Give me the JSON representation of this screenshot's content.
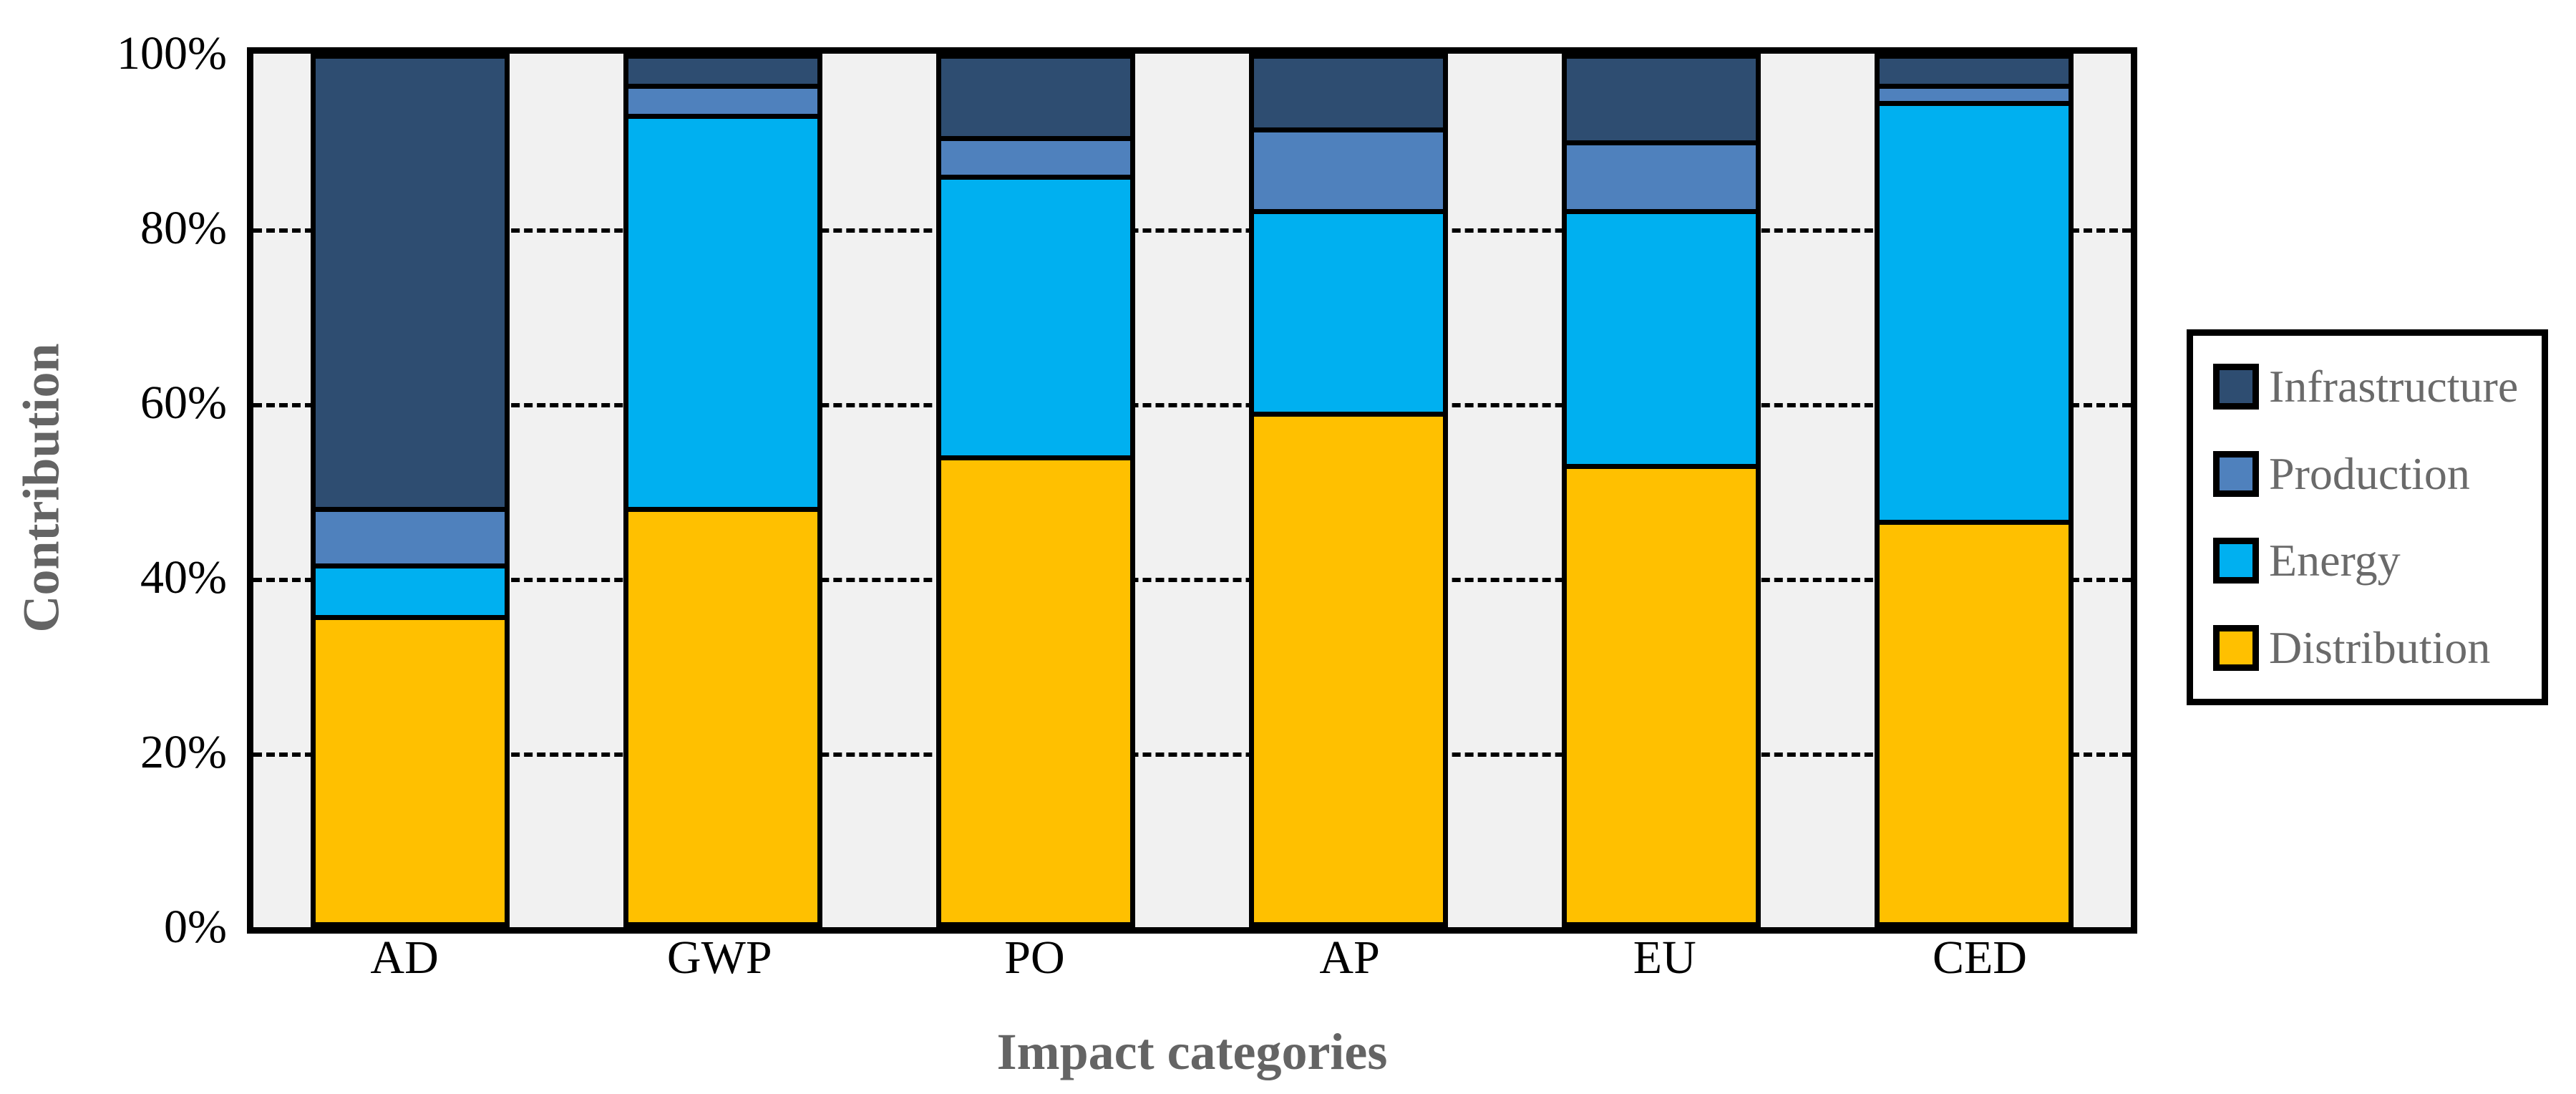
{
  "figure": {
    "y_axis_title": "Contribution",
    "x_axis_title": "Impact categories"
  },
  "y_axis": {
    "ticks": [
      {
        "label": "100%",
        "value": 100
      },
      {
        "label": "80%",
        "value": 80
      },
      {
        "label": "60%",
        "value": 60
      },
      {
        "label": "40%",
        "value": 40
      },
      {
        "label": "20%",
        "value": 20
      },
      {
        "label": "0%",
        "value": 0
      }
    ],
    "gridlines_at": [
      80,
      60,
      40,
      20
    ],
    "range": [
      0,
      100
    ]
  },
  "legend": {
    "position": "right",
    "items": [
      {
        "label": "Infrastructure",
        "color": "#2E4D71"
      },
      {
        "label": "Production",
        "color": "#4F81BD"
      },
      {
        "label": "Energy",
        "color": "#00B0F0"
      },
      {
        "label": "Distribution",
        "color": "#FFC000"
      }
    ]
  },
  "chart_data": {
    "type": "bar",
    "stacked": true,
    "units": "percent",
    "title": "",
    "xlabel": "Impact categories",
    "ylabel": "Contribution",
    "ylim": [
      0,
      100
    ],
    "grid": "horizontal dashed every 20%",
    "legend_position": "right",
    "categories": [
      "AD",
      "GWP",
      "PO",
      "AP",
      "EU",
      "CED"
    ],
    "series": [
      {
        "name": "Distribution",
        "color": "#FFC000",
        "values": [
          35,
          47.5,
          53.5,
          58.5,
          52.5,
          46
        ]
      },
      {
        "name": "Energy",
        "color": "#00B0F0",
        "values": [
          6,
          45.5,
          32.5,
          23.5,
          29.5,
          48.5
        ]
      },
      {
        "name": "Production",
        "color": "#4F81BD",
        "values": [
          6.5,
          3.5,
          4.5,
          9.5,
          8,
          2
        ]
      },
      {
        "name": "Infrastructure",
        "color": "#2E4D71",
        "values": [
          52.5,
          3.5,
          9.5,
          8.5,
          10,
          3.5
        ]
      }
    ]
  },
  "style": {
    "plot_background": "#F1F1F1",
    "page_background": "#FFFFFF",
    "axis_border_color": "#000000",
    "gridline_color": "#000000",
    "tick_label_color": "#000000",
    "axis_title_color": "#646464",
    "legend_text_color": "#6A6A6A"
  }
}
